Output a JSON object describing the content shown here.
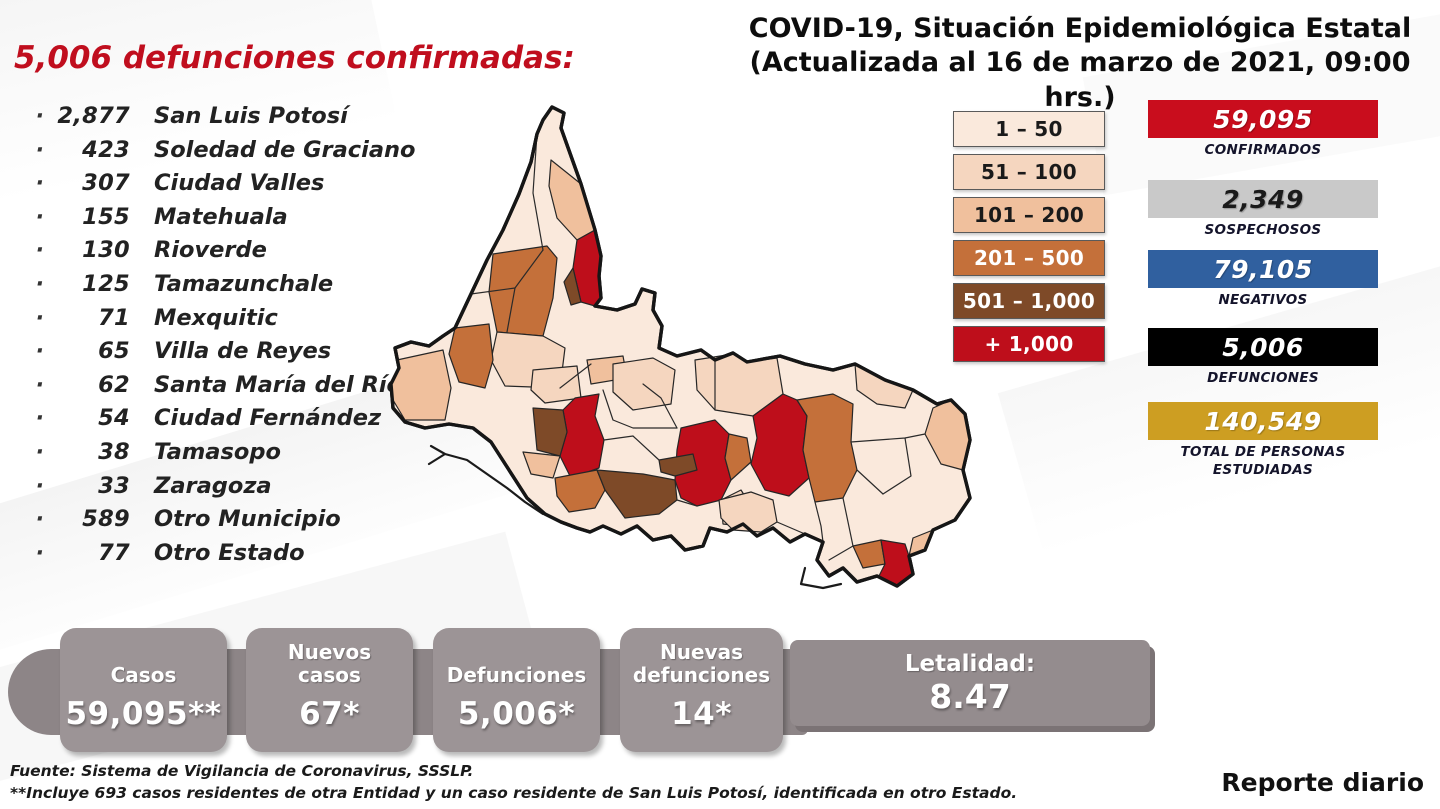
{
  "header": {
    "deaths_title": "5,006 defunciones confirmadas:",
    "title_line1": "COVID-19, Situación Epidemiológica Estatal",
    "title_line2": "(Actualizada al 16 de marzo de 2021, 09:00 hrs.)"
  },
  "list_bullet": "·",
  "municipalities": [
    {
      "count": "2,877",
      "name": "San Luis Potosí"
    },
    {
      "count": "423",
      "name": "Soledad de Graciano"
    },
    {
      "count": "307",
      "name": "Ciudad Valles"
    },
    {
      "count": "155",
      "name": "Matehuala"
    },
    {
      "count": "130",
      "name": "Rioverde"
    },
    {
      "count": "125",
      "name": "Tamazunchale"
    },
    {
      "count": "71",
      "name": "Mexquitic"
    },
    {
      "count": "65",
      "name": "Villa de Reyes"
    },
    {
      "count": "62",
      "name": "Santa María del Río"
    },
    {
      "count": "54",
      "name": "Ciudad Fernández"
    },
    {
      "count": "38",
      "name": "Tamasopo"
    },
    {
      "count": "33",
      "name": "Zaragoza"
    },
    {
      "count": "589",
      "name": "Otro Municipio"
    },
    {
      "count": "77",
      "name": "Otro Estado"
    }
  ],
  "legend": {
    "items": [
      {
        "label": "1 – 50",
        "fill": "#FAE9DC",
        "text": "#1a1a1a"
      },
      {
        "label": "51 – 100",
        "fill": "#F5D6BF",
        "text": "#1a1a1a"
      },
      {
        "label": "101 – 200",
        "fill": "#F0C09D",
        "text": "#1a1a1a"
      },
      {
        "label": "201 – 500",
        "fill": "#C4703A",
        "text": "#ffffff"
      },
      {
        "label": "501 – 1,000",
        "fill": "#7E4A28",
        "text": "#ffffff"
      },
      {
        "label": "+ 1,000",
        "fill": "#BE0E1B",
        "text": "#ffffff"
      }
    ]
  },
  "stats": [
    {
      "value": "59,095",
      "label": "CONFIRMADOS",
      "bg": "#C90D1D",
      "fg": "#ffffff"
    },
    {
      "value": "2,349",
      "label": "SOSPECHOSOS",
      "bg": "#C9C9C9",
      "fg": "#1a1a1a"
    },
    {
      "value": "79,105",
      "label": "NEGATIVOS",
      "bg": "#30609F",
      "fg": "#ffffff"
    },
    {
      "value": "5,006",
      "label": "DEFUNCIONES",
      "bg": "#000000",
      "fg": "#ffffff"
    },
    {
      "value": "140,549",
      "label": "TOTAL DE PERSONAS\nESTUDIADAS",
      "bg": "#CD9E22",
      "fg": "#ffffff"
    }
  ],
  "summary_cards": [
    {
      "label": "Casos",
      "value": "59,095**"
    },
    {
      "label": "Nuevos\ncasos",
      "value": "67*"
    },
    {
      "label": "Defunciones",
      "value": "5,006*"
    },
    {
      "label": "Nuevas\ndefunciones",
      "value": "14*"
    }
  ],
  "lethality": {
    "label": "Letalidad:",
    "value": "8.47"
  },
  "footer": {
    "source": "Fuente: Sistema de Vigilancia de Coronavirus, SSSLP.",
    "note": "**Incluye 693 casos residentes de otra Entidad y un caso residente de San Luis Potosí, identificada en otro Estado.",
    "report_type": "Reporte diario"
  },
  "chart_data": {
    "type": "table",
    "title": "5,006 defunciones confirmadas (COVID-19, San Luis Potosí, 16 de marzo de 2021)",
    "columns": [
      "Defunciones",
      "Municipio"
    ],
    "rows": [
      [
        2877,
        "San Luis Potosí"
      ],
      [
        423,
        "Soledad de Graciano"
      ],
      [
        307,
        "Ciudad Valles"
      ],
      [
        155,
        "Matehuala"
      ],
      [
        130,
        "Rioverde"
      ],
      [
        125,
        "Tamazunchale"
      ],
      [
        71,
        "Mexquitic"
      ],
      [
        65,
        "Villa de Reyes"
      ],
      [
        62,
        "Santa María del Río"
      ],
      [
        54,
        "Ciudad Fernández"
      ],
      [
        38,
        "Tamasopo"
      ],
      [
        33,
        "Zaragoza"
      ],
      [
        589,
        "Otro Municipio"
      ],
      [
        77,
        "Otro Estado"
      ]
    ],
    "totals": {
      "confirmados": 59095,
      "sospechosos": 2349,
      "negativos": 79105,
      "defunciones": 5006,
      "total_personas_estudiadas": 140549,
      "nuevos_casos": 67,
      "nuevas_defunciones": 14,
      "letalidad": 8.47
    },
    "map_legend_buckets": [
      "1 – 50",
      "51 – 100",
      "101 – 200",
      "201 – 500",
      "501 – 1,000",
      "+ 1,000"
    ]
  }
}
